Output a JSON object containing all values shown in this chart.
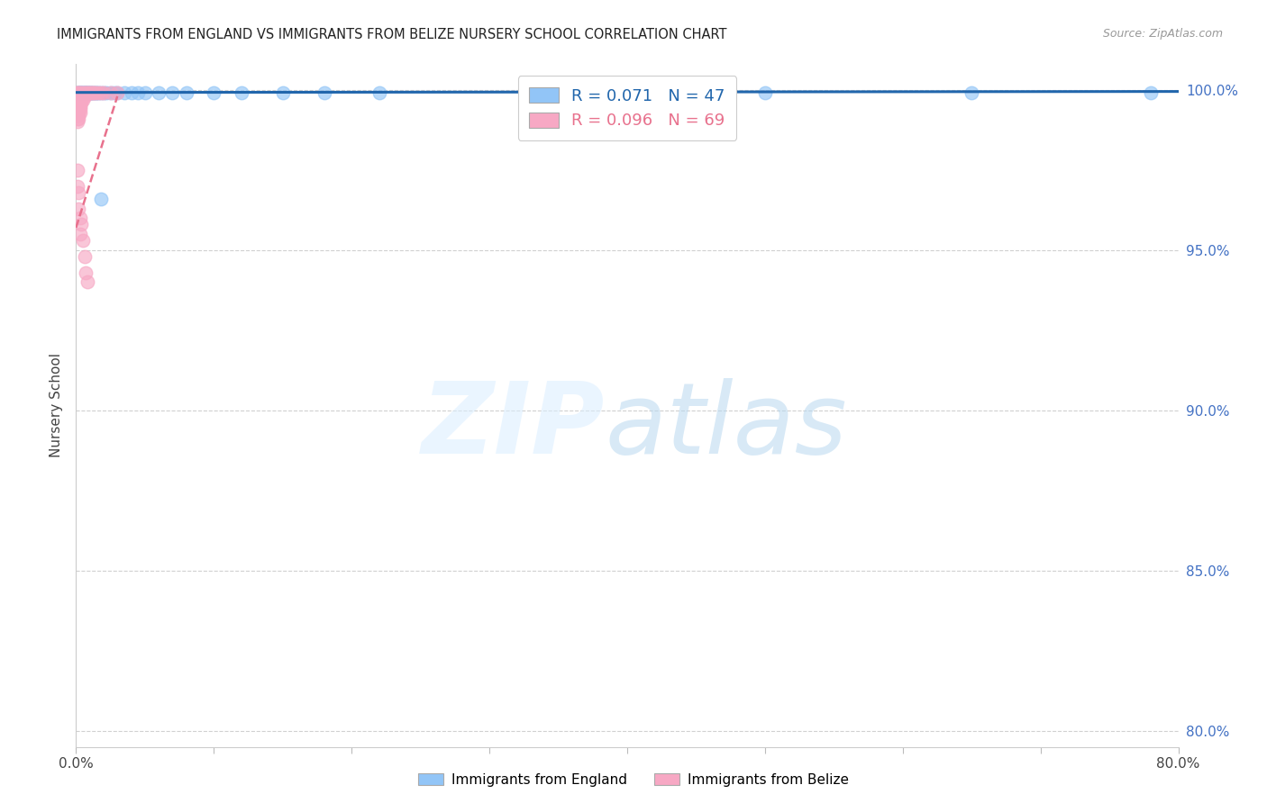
{
  "title": "IMMIGRANTS FROM ENGLAND VS IMMIGRANTS FROM BELIZE NURSERY SCHOOL CORRELATION CHART",
  "source": "Source: ZipAtlas.com",
  "ylabel": "Nursery School",
  "ytick_labels": [
    "100.0%",
    "95.0%",
    "90.0%",
    "85.0%",
    "80.0%"
  ],
  "ytick_values": [
    1.0,
    0.95,
    0.9,
    0.85,
    0.8
  ],
  "legend_england": "Immigrants from England",
  "legend_belize": "Immigrants from Belize",
  "R_england": 0.071,
  "N_england": 47,
  "R_belize": 0.096,
  "N_belize": 69,
  "color_england": "#92C5F7",
  "color_belize": "#F7A8C4",
  "trendline_england_color": "#2166ac",
  "trendline_belize_color": "#e8718d",
  "background_color": "#ffffff",
  "xlim": [
    0.0,
    0.8
  ],
  "ylim": [
    0.795,
    1.008
  ],
  "england_x": [
    0.001,
    0.002,
    0.002,
    0.003,
    0.003,
    0.004,
    0.004,
    0.005,
    0.005,
    0.006,
    0.006,
    0.007,
    0.007,
    0.008,
    0.008,
    0.009,
    0.01,
    0.01,
    0.011,
    0.012,
    0.013,
    0.014,
    0.015,
    0.016,
    0.018,
    0.02,
    0.022,
    0.025,
    0.028,
    0.03,
    0.035,
    0.04,
    0.045,
    0.05,
    0.06,
    0.07,
    0.08,
    0.1,
    0.12,
    0.15,
    0.18,
    0.22,
    0.35,
    0.5,
    0.65,
    0.78,
    0.018
  ],
  "england_y": [
    0.999,
    0.999,
    0.999,
    0.999,
    0.999,
    0.999,
    0.999,
    0.999,
    0.999,
    0.999,
    0.999,
    0.999,
    0.999,
    0.999,
    0.999,
    0.999,
    0.999,
    0.999,
    0.999,
    0.999,
    0.999,
    0.999,
    0.999,
    0.999,
    0.999,
    0.999,
    0.999,
    0.999,
    0.999,
    0.999,
    0.999,
    0.999,
    0.999,
    0.999,
    0.999,
    0.999,
    0.999,
    0.999,
    0.999,
    0.999,
    0.999,
    0.999,
    0.999,
    0.999,
    0.999,
    0.999,
    0.966
  ],
  "belize_x": [
    0.001,
    0.001,
    0.001,
    0.001,
    0.001,
    0.001,
    0.001,
    0.001,
    0.001,
    0.001,
    0.001,
    0.001,
    0.001,
    0.001,
    0.001,
    0.001,
    0.001,
    0.001,
    0.001,
    0.001,
    0.002,
    0.002,
    0.002,
    0.002,
    0.002,
    0.002,
    0.002,
    0.002,
    0.002,
    0.003,
    0.003,
    0.003,
    0.003,
    0.003,
    0.003,
    0.003,
    0.004,
    0.004,
    0.004,
    0.004,
    0.005,
    0.005,
    0.005,
    0.006,
    0.006,
    0.007,
    0.008,
    0.009,
    0.01,
    0.011,
    0.012,
    0.013,
    0.014,
    0.016,
    0.018,
    0.02,
    0.025,
    0.03,
    0.001,
    0.001,
    0.002,
    0.002,
    0.003,
    0.003,
    0.004,
    0.005,
    0.006,
    0.007,
    0.008
  ],
  "belize_y": [
    0.999,
    0.999,
    0.998,
    0.998,
    0.998,
    0.997,
    0.997,
    0.997,
    0.996,
    0.996,
    0.995,
    0.995,
    0.994,
    0.994,
    0.993,
    0.993,
    0.992,
    0.992,
    0.991,
    0.99,
    0.999,
    0.998,
    0.997,
    0.996,
    0.995,
    0.994,
    0.993,
    0.992,
    0.991,
    0.999,
    0.998,
    0.997,
    0.996,
    0.995,
    0.994,
    0.993,
    0.999,
    0.998,
    0.997,
    0.996,
    0.999,
    0.998,
    0.997,
    0.999,
    0.998,
    0.999,
    0.999,
    0.999,
    0.999,
    0.999,
    0.999,
    0.999,
    0.999,
    0.999,
    0.999,
    0.999,
    0.999,
    0.999,
    0.975,
    0.97,
    0.968,
    0.963,
    0.96,
    0.955,
    0.958,
    0.953,
    0.948,
    0.943,
    0.94
  ],
  "eng_trend_x": [
    0.0,
    0.8
  ],
  "eng_trend_y": [
    0.9992,
    0.9995
  ],
  "bel_trend_x": [
    0.0,
    0.03
  ],
  "bel_trend_y": [
    0.957,
    0.998
  ]
}
